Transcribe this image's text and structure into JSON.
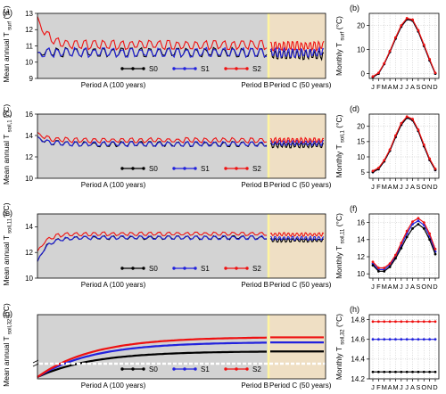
{
  "colors": {
    "S0": "#000000",
    "S1": "#2222dd",
    "S2": "#ee1111",
    "periodA_bg": "#d3d3d3",
    "periodC_bg": "#efdfc4",
    "periodB_line": "#fff5a0"
  },
  "legend_entries": [
    "S0",
    "S1",
    "S2"
  ],
  "chart_data": [
    {
      "id": "a",
      "type": "line",
      "panel_label": "(a)",
      "ylabel_prefix": "Mean annual T",
      "ylabel_sub": "surf",
      "ylabel_unit": "(°C)",
      "ylim": [
        9,
        13
      ],
      "yticks": [
        9,
        10,
        11,
        12,
        13
      ],
      "period_labels": [
        "Period A (100 years)",
        "Period B",
        "Period C (50 years)"
      ],
      "years_A": 100,
      "years_C": 50,
      "series": [
        {
          "name": "S0",
          "start": 10.6,
          "base": 10.6,
          "amp": 0.3
        },
        {
          "name": "S1",
          "start": 10.6,
          "base": 10.6,
          "amp": 0.3
        },
        {
          "name": "S2",
          "start": 12.8,
          "base": 11.05,
          "amp": 0.3
        }
      ],
      "period_c_levels": {
        "S0": 10.45,
        "S1": 10.6,
        "S2": 11.0
      }
    },
    {
      "id": "b",
      "type": "line",
      "panel_label": "(b)",
      "ylabel_prefix": "Monthly T",
      "ylabel_sub": "surf",
      "ylabel_unit": "(°C)",
      "categories": [
        "J",
        "F",
        "M",
        "A",
        "M",
        "J",
        "J",
        "A",
        "S",
        "O",
        "N",
        "D"
      ],
      "ylim": [
        -2,
        25
      ],
      "yticks": [
        0,
        10,
        20
      ],
      "series": [
        {
          "name": "S0",
          "values": [
            -1.5,
            0.0,
            4.0,
            9.0,
            14.5,
            19.5,
            22.5,
            22.0,
            17.5,
            11.5,
            5.5,
            0.0
          ]
        },
        {
          "name": "S1",
          "values": [
            -1.5,
            0.0,
            4.0,
            9.0,
            14.5,
            19.5,
            22.5,
            22.0,
            17.5,
            11.5,
            5.5,
            0.0
          ]
        },
        {
          "name": "S2",
          "values": [
            -1.2,
            0.3,
            4.3,
            9.4,
            15.0,
            20.0,
            23.0,
            22.4,
            18.0,
            12.0,
            6.0,
            0.3
          ]
        }
      ]
    },
    {
      "id": "c",
      "type": "line",
      "panel_label": "(c)",
      "ylabel_prefix": "Mean annual T",
      "ylabel_sub": "soil,1",
      "ylabel_unit": "(°C)",
      "ylim": [
        10,
        16
      ],
      "yticks": [
        10,
        12,
        14,
        16
      ],
      "period_labels": [
        "Period A (100 years)",
        "Period B",
        "Period C (50 years)"
      ],
      "years_A": 100,
      "years_C": 50,
      "series": [
        {
          "name": "S0",
          "start": 13.9,
          "base": 13.2,
          "amp": 0.25
        },
        {
          "name": "S1",
          "start": 13.9,
          "base": 13.2,
          "amp": 0.25
        },
        {
          "name": "S2",
          "start": 14.3,
          "base": 13.55,
          "amp": 0.25
        }
      ],
      "period_c_levels": {
        "S0": 13.1,
        "S1": 13.3,
        "S2": 13.55
      }
    },
    {
      "id": "d",
      "type": "line",
      "panel_label": "(d)",
      "ylabel_prefix": "Monthly T",
      "ylabel_sub": "soil,1",
      "ylabel_unit": "(°C)",
      "categories": [
        "J",
        "F",
        "M",
        "A",
        "M",
        "J",
        "J",
        "A",
        "S",
        "O",
        "N",
        "D"
      ],
      "ylim": [
        3,
        24
      ],
      "yticks": [
        5,
        10,
        15,
        20
      ],
      "series": [
        {
          "name": "S0",
          "values": [
            5.0,
            6.0,
            8.5,
            12.0,
            16.5,
            20.5,
            22.8,
            22.0,
            18.5,
            13.5,
            9.0,
            5.7
          ]
        },
        {
          "name": "S1",
          "values": [
            5.0,
            6.0,
            8.5,
            12.0,
            16.5,
            20.5,
            22.8,
            22.0,
            18.5,
            13.5,
            9.0,
            5.7
          ]
        },
        {
          "name": "S2",
          "values": [
            5.4,
            6.4,
            8.9,
            12.4,
            17.0,
            21.0,
            23.2,
            22.4,
            18.9,
            14.0,
            9.4,
            6.1
          ]
        }
      ]
    },
    {
      "id": "e",
      "type": "line",
      "panel_label": "(e)",
      "ylabel_prefix": "Mean annual T",
      "ylabel_sub": "soil,11",
      "ylabel_unit": "(°C)",
      "ylim": [
        10,
        15
      ],
      "yticks": [
        10,
        12,
        14
      ],
      "period_labels": [
        "Period A (100 years)",
        "Period B",
        "Period C (50 years)"
      ],
      "years_A": 100,
      "years_C": 50,
      "series": [
        {
          "name": "S0",
          "start": 11.3,
          "base": 13.15,
          "amp": 0.15
        },
        {
          "name": "S1",
          "start": 11.3,
          "base": 13.15,
          "amp": 0.15
        },
        {
          "name": "S2",
          "start": 12.1,
          "base": 13.45,
          "amp": 0.15
        }
      ],
      "period_c_levels": {
        "S0": 12.95,
        "S1": 13.1,
        "S2": 13.4
      }
    },
    {
      "id": "f",
      "type": "line",
      "panel_label": "(f)",
      "ylabel_prefix": "Monthly T",
      "ylabel_sub": "soil,11",
      "ylabel_unit": "(°C)",
      "categories": [
        "J",
        "F",
        "M",
        "A",
        "M",
        "J",
        "J",
        "A",
        "S",
        "O",
        "N",
        "D"
      ],
      "ylim": [
        9.5,
        17
      ],
      "yticks": [
        10,
        12,
        14,
        16
      ],
      "series": [
        {
          "name": "S0",
          "values": [
            11.0,
            10.3,
            10.3,
            10.8,
            11.8,
            13.0,
            14.3,
            15.3,
            15.8,
            15.3,
            14.0,
            12.3
          ]
        },
        {
          "name": "S1",
          "values": [
            11.2,
            10.5,
            10.5,
            11.0,
            12.0,
            13.3,
            14.7,
            15.8,
            16.2,
            15.7,
            14.4,
            12.6
          ]
        },
        {
          "name": "S2",
          "values": [
            11.4,
            10.7,
            10.7,
            11.2,
            12.2,
            13.6,
            15.0,
            16.1,
            16.5,
            16.0,
            14.7,
            12.9
          ]
        }
      ]
    },
    {
      "id": "g",
      "type": "line",
      "panel_label": "(g)",
      "ylabel_prefix": "Mean annual T",
      "ylabel_sub": "soil,32",
      "ylabel_unit": "(°C)",
      "period_labels": [
        "Period A (100 years)",
        "Period B",
        "Period C (50 years)"
      ],
      "years_A": 100,
      "years_C": 50,
      "axis_break": true,
      "series": [
        {
          "name": "S0",
          "start": 9.0,
          "final": 14.28
        },
        {
          "name": "S1",
          "start": 9.0,
          "final": 14.6
        },
        {
          "name": "S2",
          "start": 9.0,
          "final": 14.78
        }
      ]
    },
    {
      "id": "h",
      "type": "line",
      "panel_label": "(h)",
      "ylabel_prefix": "Monthly T",
      "ylabel_sub": "soil,32",
      "ylabel_unit": "(°C)",
      "categories": [
        "J",
        "F",
        "M",
        "A",
        "M",
        "J",
        "J",
        "A",
        "S",
        "O",
        "N",
        "D"
      ],
      "ylim": [
        14.2,
        14.85
      ],
      "yticks": [
        14.2,
        14.4,
        14.6,
        14.8
      ],
      "series": [
        {
          "name": "S0",
          "values": [
            14.27,
            14.27,
            14.27,
            14.27,
            14.27,
            14.27,
            14.27,
            14.27,
            14.27,
            14.27,
            14.27,
            14.27
          ]
        },
        {
          "name": "S1",
          "values": [
            14.6,
            14.6,
            14.6,
            14.6,
            14.6,
            14.6,
            14.6,
            14.6,
            14.6,
            14.6,
            14.6,
            14.6
          ]
        },
        {
          "name": "S2",
          "values": [
            14.78,
            14.78,
            14.78,
            14.78,
            14.78,
            14.78,
            14.78,
            14.78,
            14.78,
            14.78,
            14.78,
            14.78
          ]
        }
      ]
    }
  ]
}
